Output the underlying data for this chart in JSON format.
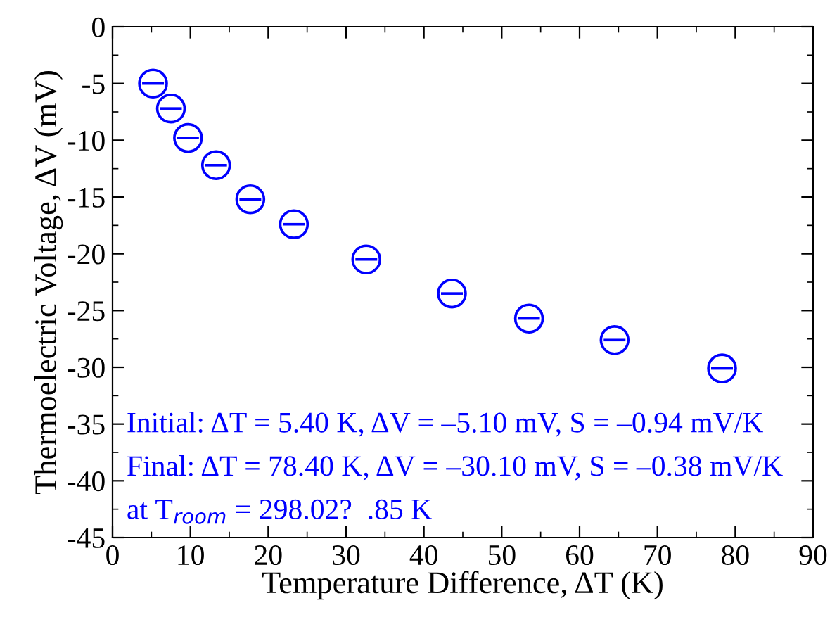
{
  "chart_data": {
    "type": "scatter",
    "xlabel": "Temperature Difference, ΔT (K)",
    "ylabel": "Thermoelectric Voltage, ΔV (mV)",
    "x": [
      5.2,
      7.5,
      9.7,
      13.3,
      17.7,
      23.3,
      32.6,
      43.6,
      53.5,
      64.5,
      78.3
    ],
    "series": [
      {
        "color": "#0000ff",
        "values": [
          -5.0,
          -7.2,
          -9.8,
          -12.2,
          -15.2,
          -17.4,
          -20.5,
          -23.5,
          -25.7,
          -27.6,
          -30.1
        ],
        "xerrors": [
          1.4,
          1.4,
          1.4,
          1.4,
          1.4,
          1.4,
          1.4,
          1.4,
          1.4,
          1.4,
          1.4
        ]
      }
    ],
    "marker": "circle",
    "xlim": [
      0,
      90
    ],
    "xticks": [
      0,
      10,
      20,
      30,
      40,
      50,
      60,
      70,
      80,
      90
    ],
    "ylim": [
      -45,
      0
    ],
    "yticks": [
      -45,
      -40,
      -35,
      -30,
      -25,
      -20,
      -15,
      -10,
      -5,
      0
    ],
    "grid": false,
    "legend": false,
    "annotations": [
      "Initial: ΔT = 5.40 K, ΔV = –5.10 mV, S = –0.94 mV/K",
      "Final: ΔT = 78.40 K, ΔV = –30.10 mV, S = –0.38 mV/K",
      "at T$_{room}$ = 298.02?  .85 K"
    ]
  }
}
